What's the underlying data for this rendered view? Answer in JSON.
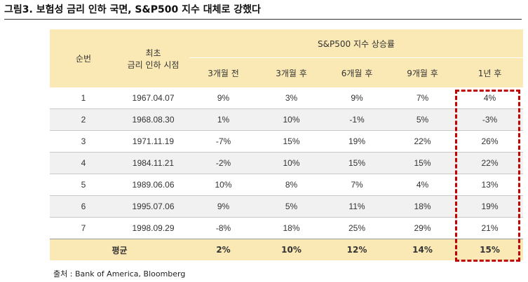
{
  "title": "그림3. 보험성 금리 인하 국면, S&P500 지수 대체로 강했다",
  "table": {
    "col_rank": "순번",
    "col_date_line1": "최초",
    "col_date_line2": "금리 인하 시점",
    "group_header": "S&P500 지수 상승률",
    "periods": [
      "3개월 전",
      "3개월 후",
      "6개월 후",
      "9개월 후",
      "1년 후"
    ],
    "rows": [
      {
        "rank": "1",
        "date": "1967.04.07",
        "p3b": "9%",
        "p3a": "3%",
        "p6a": "9%",
        "p9a": "7%",
        "p12a": "4%"
      },
      {
        "rank": "2",
        "date": "1968.08.30",
        "p3b": "1%",
        "p3a": "10%",
        "p6a": "-1%",
        "p9a": "5%",
        "p12a": "-3%"
      },
      {
        "rank": "3",
        "date": "1971.11.19",
        "p3b": "-7%",
        "p3a": "15%",
        "p6a": "19%",
        "p9a": "22%",
        "p12a": "26%"
      },
      {
        "rank": "4",
        "date": "1984.11.21",
        "p3b": "-2%",
        "p3a": "10%",
        "p6a": "15%",
        "p9a": "15%",
        "p12a": "22%"
      },
      {
        "rank": "5",
        "date": "1989.06.06",
        "p3b": "10%",
        "p3a": "8%",
        "p6a": "7%",
        "p9a": "4%",
        "p12a": "13%"
      },
      {
        "rank": "6",
        "date": "1995.07.06",
        "p3b": "9%",
        "p3a": "5%",
        "p6a": "11%",
        "p9a": "18%",
        "p12a": "19%"
      },
      {
        "rank": "7",
        "date": "1998.09.29",
        "p3b": "-8%",
        "p3a": "18%",
        "p6a": "25%",
        "p9a": "29%",
        "p12a": "21%"
      }
    ],
    "average": {
      "label": "평균",
      "p3b": "2%",
      "p3a": "10%",
      "p6a": "12%",
      "p9a": "14%",
      "p12a": "15%"
    }
  },
  "source": "출처 : Bank of America, Bloomberg",
  "colors": {
    "header_bg": "#fbe9b5",
    "highlight": "#c00000",
    "row_alt": "#f1f1f1"
  }
}
